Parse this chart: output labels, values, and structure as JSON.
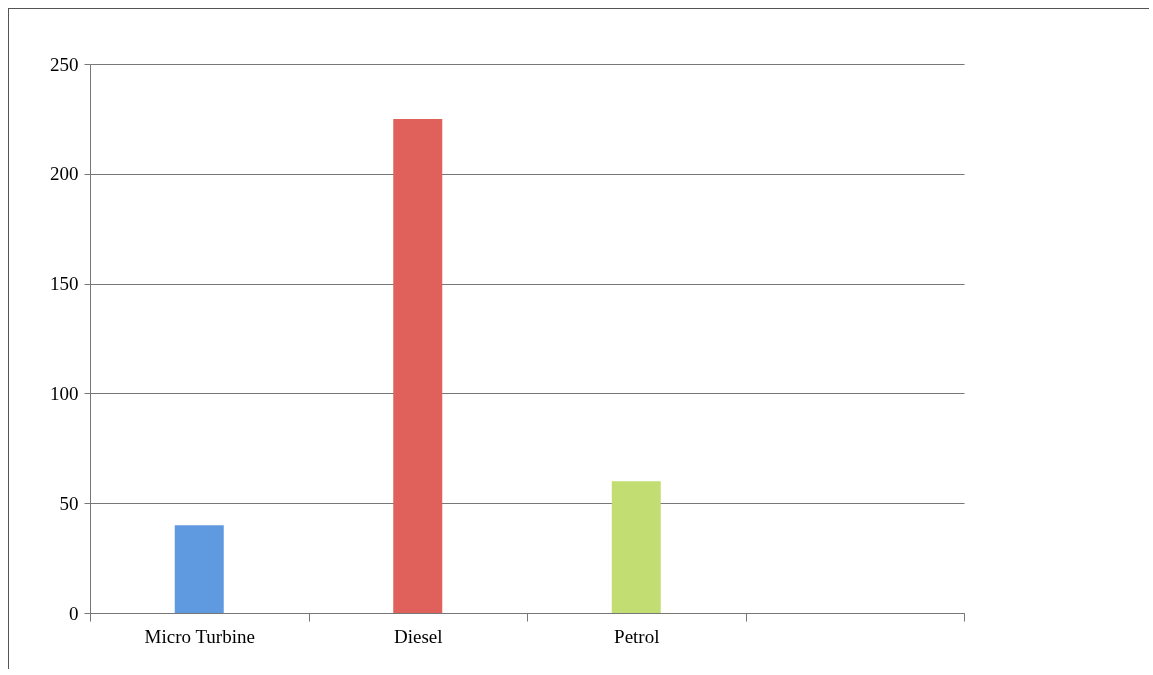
{
  "chart_data": {
    "type": "bar",
    "categories": [
      "Micro Turbine",
      "Diesel",
      "Petrol",
      null
    ],
    "values": [
      40,
      225,
      60,
      null
    ],
    "colors": [
      "#5f9ae0",
      "#e0605c",
      "#c2de72",
      null
    ],
    "ylim": [
      0,
      250
    ],
    "yticks": [
      0,
      50,
      100,
      150,
      200,
      250
    ],
    "grid": "y"
  }
}
